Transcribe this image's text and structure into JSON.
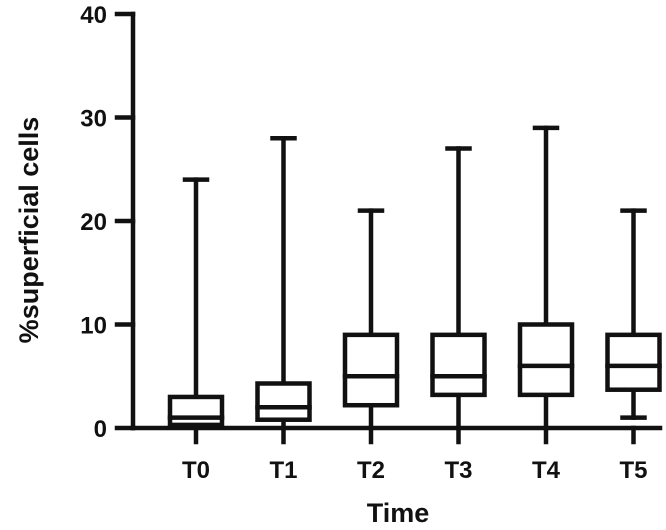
{
  "chart_data": {
    "type": "boxplot",
    "title": "",
    "xlabel": "Time",
    "ylabel": "%superficial cells",
    "ylim": [
      0,
      40
    ],
    "yticks": [
      0,
      10,
      20,
      30,
      40
    ],
    "grid": false,
    "categories": [
      "T0",
      "T1",
      "T2",
      "T3",
      "T4",
      "T5"
    ],
    "boxes": [
      {
        "category": "T0",
        "min": 0,
        "q1": 0.3,
        "median": 1,
        "q3": 3,
        "max": 24
      },
      {
        "category": "T1",
        "min": 0,
        "q1": 0.8,
        "median": 2,
        "q3": 4.3,
        "max": 28
      },
      {
        "category": "T2",
        "min": 0,
        "q1": 2.2,
        "median": 5,
        "q3": 9,
        "max": 21
      },
      {
        "category": "T3",
        "min": 0,
        "q1": 3.2,
        "median": 5,
        "q3": 9,
        "max": 27
      },
      {
        "category": "T4",
        "min": 0,
        "q1": 3.2,
        "median": 6,
        "q3": 10,
        "max": 29
      },
      {
        "category": "T5",
        "min": 1,
        "q1": 3.7,
        "median": 6,
        "q3": 9,
        "max": 21
      }
    ]
  }
}
